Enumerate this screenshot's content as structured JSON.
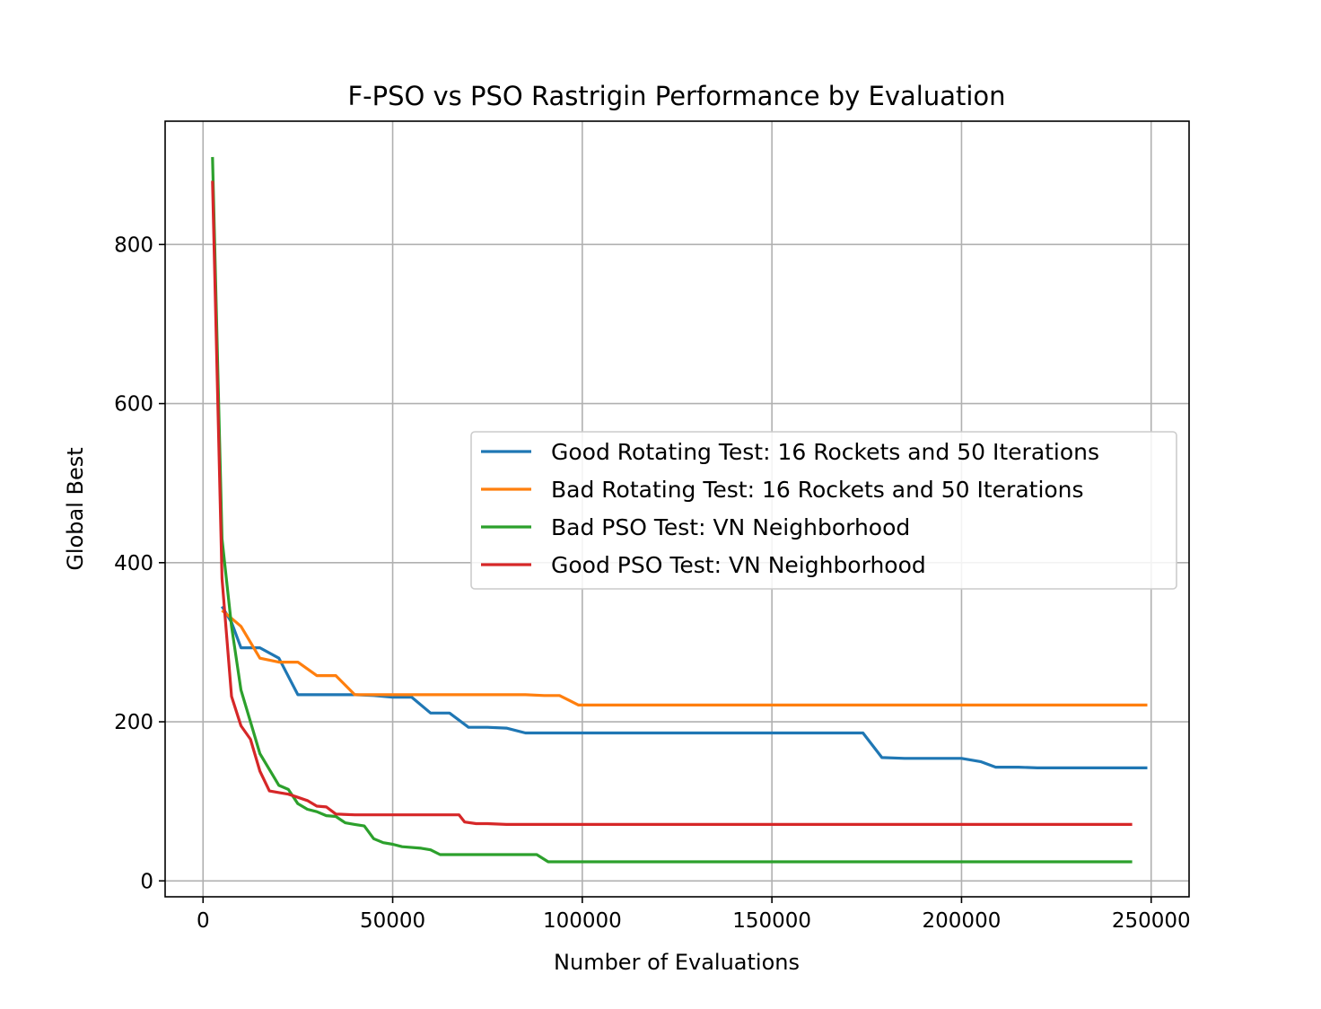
{
  "chart_data": {
    "type": "line",
    "title": "F-PSO vs PSO Rastrigin Performance by Evaluation",
    "xlabel": "Number of Evaluations",
    "ylabel": "Global Best",
    "xlim": [
      -10000,
      260000
    ],
    "ylim": [
      -20,
      955
    ],
    "xticks": [
      0,
      50000,
      100000,
      150000,
      200000,
      250000
    ],
    "yticks": [
      0,
      200,
      400,
      600,
      800
    ],
    "grid": true,
    "legend": "center-right",
    "series": [
      {
        "name": "Good Rotating Test: 16 Rockets and 50 Iterations",
        "color": "#1f77b4",
        "points": [
          [
            5000,
            345
          ],
          [
            7500,
            325
          ],
          [
            10000,
            293
          ],
          [
            15000,
            293
          ],
          [
            20000,
            280
          ],
          [
            25000,
            234
          ],
          [
            30000,
            234
          ],
          [
            40000,
            234
          ],
          [
            45000,
            233
          ],
          [
            50000,
            231
          ],
          [
            55000,
            231
          ],
          [
            60000,
            211
          ],
          [
            65000,
            211
          ],
          [
            70000,
            193
          ],
          [
            75000,
            193
          ],
          [
            80000,
            192
          ],
          [
            85000,
            186
          ],
          [
            90000,
            186
          ],
          [
            100000,
            186
          ],
          [
            150000,
            186
          ],
          [
            170000,
            186
          ],
          [
            174000,
            186
          ],
          [
            179000,
            155
          ],
          [
            185000,
            154
          ],
          [
            190000,
            154
          ],
          [
            200000,
            154
          ],
          [
            205000,
            150
          ],
          [
            209000,
            143
          ],
          [
            215000,
            143
          ],
          [
            220000,
            142
          ],
          [
            230000,
            142
          ],
          [
            240000,
            142
          ],
          [
            249000,
            142
          ]
        ]
      },
      {
        "name": "Bad Rotating Test: 16 Rockets and 50 Iterations",
        "color": "#ff7f0e",
        "points": [
          [
            5000,
            340
          ],
          [
            7500,
            330
          ],
          [
            10000,
            320
          ],
          [
            15000,
            280
          ],
          [
            20000,
            275
          ],
          [
            25000,
            275
          ],
          [
            30000,
            258
          ],
          [
            35000,
            258
          ],
          [
            40000,
            234
          ],
          [
            50000,
            234
          ],
          [
            60000,
            234
          ],
          [
            70000,
            234
          ],
          [
            80000,
            234
          ],
          [
            85000,
            234
          ],
          [
            90000,
            233
          ],
          [
            94000,
            233
          ],
          [
            99000,
            221
          ],
          [
            110000,
            221
          ],
          [
            150000,
            221
          ],
          [
            200000,
            221
          ],
          [
            249000,
            221
          ]
        ]
      },
      {
        "name": "Bad PSO Test: VN Neighborhood",
        "color": "#2ca02c",
        "points": [
          [
            2500,
            910
          ],
          [
            5000,
            430
          ],
          [
            7500,
            320
          ],
          [
            10000,
            240
          ],
          [
            12500,
            200
          ],
          [
            15000,
            160
          ],
          [
            17500,
            140
          ],
          [
            20000,
            120
          ],
          [
            22500,
            115
          ],
          [
            25000,
            97
          ],
          [
            27500,
            90
          ],
          [
            30000,
            87
          ],
          [
            32500,
            82
          ],
          [
            35000,
            81
          ],
          [
            37500,
            73
          ],
          [
            40000,
            71
          ],
          [
            42500,
            69
          ],
          [
            45000,
            53
          ],
          [
            47500,
            48
          ],
          [
            50000,
            46
          ],
          [
            52500,
            43
          ],
          [
            57500,
            41
          ],
          [
            60000,
            39
          ],
          [
            62500,
            33
          ],
          [
            65000,
            33
          ],
          [
            70000,
            33
          ],
          [
            80000,
            33
          ],
          [
            85000,
            33
          ],
          [
            88000,
            33
          ],
          [
            91000,
            24
          ],
          [
            100000,
            24
          ],
          [
            150000,
            24
          ],
          [
            200000,
            24
          ],
          [
            245000,
            24
          ]
        ]
      },
      {
        "name": "Good PSO Test: VN Neighborhood",
        "color": "#d62728",
        "points": [
          [
            2500,
            880
          ],
          [
            5000,
            380
          ],
          [
            7500,
            232
          ],
          [
            10000,
            195
          ],
          [
            12500,
            178
          ],
          [
            15000,
            138
          ],
          [
            17500,
            113
          ],
          [
            20000,
            111
          ],
          [
            22500,
            109
          ],
          [
            25000,
            105
          ],
          [
            27500,
            101
          ],
          [
            30000,
            94
          ],
          [
            32500,
            93
          ],
          [
            35000,
            84
          ],
          [
            40000,
            83
          ],
          [
            45000,
            83
          ],
          [
            50000,
            83
          ],
          [
            55000,
            83
          ],
          [
            60000,
            83
          ],
          [
            65000,
            83
          ],
          [
            67500,
            83
          ],
          [
            69000,
            74
          ],
          [
            72000,
            72
          ],
          [
            75000,
            72
          ],
          [
            80000,
            71
          ],
          [
            85000,
            71
          ],
          [
            100000,
            71
          ],
          [
            150000,
            71
          ],
          [
            200000,
            71
          ],
          [
            245000,
            71
          ]
        ]
      }
    ]
  }
}
